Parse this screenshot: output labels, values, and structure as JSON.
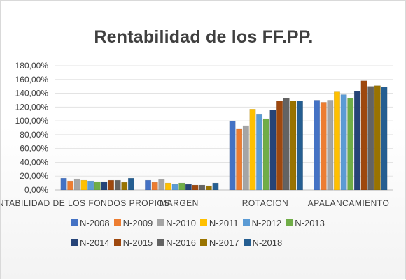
{
  "chart_data": {
    "type": "bar",
    "title": "Rentabilidad de los FF.PP.",
    "xlabel": "",
    "ylabel": "",
    "categories": [
      "RENTABILIDAD DE LOS FONDOS PROPIOS",
      "MARGEN",
      "ROTACION",
      "APALANCAMIENTO"
    ],
    "ylim": [
      0,
      180
    ],
    "yticks": [
      0,
      20,
      40,
      60,
      80,
      100,
      120,
      140,
      160,
      180
    ],
    "ytick_labels": [
      "0,00%",
      "20,00%",
      "40,00%",
      "60,00%",
      "80,00%",
      "100,00%",
      "120,00%",
      "140,00%",
      "160,00%",
      "180,00%"
    ],
    "grid": true,
    "legend_position": "bottom",
    "series": [
      {
        "name": "N-2008",
        "color": "#4472c4",
        "values": [
          17,
          14,
          100,
          130
        ]
      },
      {
        "name": "N-2009",
        "color": "#ed7d31",
        "values": [
          13,
          11,
          88,
          127
        ]
      },
      {
        "name": "N-2010",
        "color": "#a5a5a5",
        "values": [
          16,
          15,
          93,
          130
        ]
      },
      {
        "name": "N-2011",
        "color": "#ffc000",
        "values": [
          14,
          10,
          117,
          142
        ]
      },
      {
        "name": "N-2012",
        "color": "#5b9bd5",
        "values": [
          13,
          8,
          110,
          138
        ]
      },
      {
        "name": "N-2013",
        "color": "#70ad47",
        "values": [
          12,
          10,
          103,
          133
        ]
      },
      {
        "name": "N-2014",
        "color": "#264478",
        "values": [
          12,
          8,
          116,
          143
        ]
      },
      {
        "name": "N-2015",
        "color": "#9e480e",
        "values": [
          14,
          7,
          129,
          158
        ]
      },
      {
        "name": "N-2016",
        "color": "#636363",
        "values": [
          14,
          7,
          133,
          150
        ]
      },
      {
        "name": "N-2017",
        "color": "#997300",
        "values": [
          11,
          6,
          129,
          151
        ]
      },
      {
        "name": "N-2018",
        "color": "#255e91",
        "values": [
          17,
          10,
          129,
          149
        ]
      }
    ]
  }
}
